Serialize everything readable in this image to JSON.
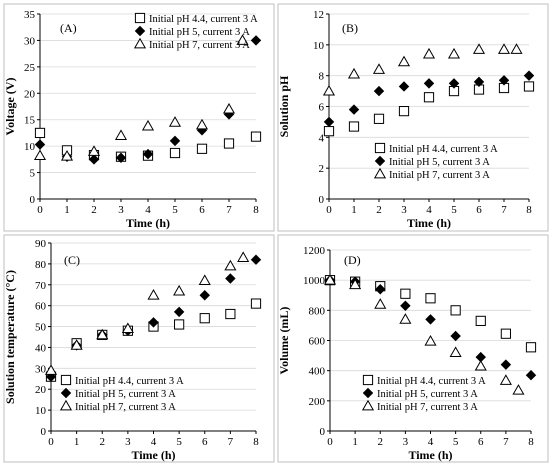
{
  "chart_data": [
    {
      "type": "scatter",
      "panel_label": "(A)",
      "xlabel": "Time (h)",
      "ylabel": "Voltage (V)",
      "xlim": [
        0,
        8
      ],
      "ylim": [
        0,
        35
      ],
      "xticks": [
        0,
        1,
        2,
        3,
        4,
        5,
        6,
        7,
        8
      ],
      "yticks": [
        0,
        5,
        10,
        15,
        20,
        25,
        30,
        35
      ],
      "grid": "horizontal",
      "legend_position": "top-right",
      "series": [
        {
          "name": "Initial pH 4.4, current 3 A",
          "marker": "square",
          "x": [
            0,
            1,
            2,
            3,
            4,
            5,
            6,
            7,
            8
          ],
          "y": [
            12.5,
            9.2,
            8.3,
            8.0,
            8.2,
            8.7,
            9.5,
            10.5,
            11.8
          ]
        },
        {
          "name": "Initial pH 5, current 3 A",
          "marker": "diamond",
          "x": [
            0,
            1,
            2,
            3,
            4,
            5,
            6,
            7,
            8
          ],
          "y": [
            10.3,
            8.0,
            7.5,
            7.8,
            8.5,
            11.0,
            13.0,
            16.0,
            30.0
          ]
        },
        {
          "name": "Initial pH 7, current 3 A",
          "marker": "triangle",
          "x": [
            0,
            1,
            2,
            3,
            4,
            5,
            6,
            7,
            7.5
          ],
          "y": [
            8.2,
            8.1,
            9.0,
            12.0,
            13.8,
            14.5,
            14.0,
            17.0,
            30.0
          ]
        }
      ]
    },
    {
      "type": "scatter",
      "panel_label": "(B)",
      "xlabel": "Time (h)",
      "ylabel": "Solution pH",
      "xlim": [
        0,
        8
      ],
      "ylim": [
        0,
        12
      ],
      "xticks": [
        0,
        1,
        2,
        3,
        4,
        5,
        6,
        7,
        8
      ],
      "yticks": [
        0,
        2,
        4,
        6,
        8,
        10,
        12
      ],
      "grid": "horizontal",
      "legend_position": "bottom-right",
      "series": [
        {
          "name": "Initial pH 4.4, current 3 A",
          "marker": "square",
          "x": [
            0,
            1,
            2,
            3,
            4,
            5,
            6,
            7,
            8
          ],
          "y": [
            4.4,
            4.7,
            5.2,
            5.7,
            6.6,
            7.0,
            7.1,
            7.2,
            7.3
          ]
        },
        {
          "name": "Initial pH 5, current 3 A",
          "marker": "diamond",
          "x": [
            0,
            1,
            2,
            3,
            4,
            5,
            6,
            7,
            8
          ],
          "y": [
            5.0,
            5.8,
            7.0,
            7.3,
            7.5,
            7.5,
            7.6,
            7.7,
            8.0
          ]
        },
        {
          "name": "Initial pH 7, current 3 A",
          "marker": "triangle",
          "x": [
            0,
            1,
            2,
            3,
            4,
            5,
            6,
            7,
            7.5
          ],
          "y": [
            7.0,
            8.1,
            8.4,
            8.9,
            9.4,
            9.4,
            9.7,
            9.7,
            9.7
          ]
        }
      ]
    },
    {
      "type": "scatter",
      "panel_label": "(C)",
      "xlabel": "Time (h)",
      "ylabel": "Solution temperature (°C)",
      "xlim": [
        0,
        8
      ],
      "ylim": [
        0,
        90
      ],
      "xticks": [
        0,
        1,
        2,
        3,
        4,
        5,
        6,
        7,
        8
      ],
      "yticks": [
        0,
        10,
        20,
        30,
        40,
        50,
        60,
        70,
        80,
        90
      ],
      "grid": "horizontal",
      "legend_position": "bottom-right",
      "series": [
        {
          "name": "Initial pH 4.4, current 3 A",
          "marker": "square",
          "x": [
            0,
            1,
            2,
            3,
            4,
            5,
            6,
            7,
            8
          ],
          "y": [
            26,
            42,
            46,
            48,
            50,
            51,
            54,
            56,
            61
          ]
        },
        {
          "name": "Initial pH 5, current 3 A",
          "marker": "diamond",
          "x": [
            0,
            1,
            2,
            3,
            4,
            5,
            6,
            7,
            8
          ],
          "y": [
            26,
            41,
            46,
            48,
            52,
            57,
            65,
            73,
            82
          ]
        },
        {
          "name": "Initial pH 7, current 3 A",
          "marker": "triangle",
          "x": [
            0,
            1,
            2,
            3,
            4,
            5,
            6,
            7,
            7.5
          ],
          "y": [
            29,
            41,
            46,
            49,
            65,
            67,
            72,
            79,
            83
          ]
        }
      ]
    },
    {
      "type": "scatter",
      "panel_label": "(D)",
      "xlabel": "Time (h)",
      "ylabel": "Volume (mL)",
      "xlim": [
        0,
        8
      ],
      "ylim": [
        0,
        1200
      ],
      "xticks": [
        0,
        1,
        2,
        3,
        4,
        5,
        6,
        7,
        8
      ],
      "yticks": [
        0,
        200,
        400,
        600,
        800,
        1000,
        1200
      ],
      "grid": "horizontal",
      "legend_position": "bottom-left",
      "series": [
        {
          "name": "Initial pH 4.4, current 3 A",
          "marker": "square",
          "x": [
            0,
            1,
            2,
            3,
            4,
            5,
            6,
            7,
            8
          ],
          "y": [
            1000,
            990,
            960,
            910,
            880,
            800,
            730,
            645,
            555
          ]
        },
        {
          "name": "Initial pH 5, current 3 A",
          "marker": "diamond",
          "x": [
            0,
            1,
            2,
            3,
            4,
            5,
            6,
            7,
            8
          ],
          "y": [
            1000,
            990,
            940,
            830,
            740,
            630,
            490,
            440,
            370
          ]
        },
        {
          "name": "Initial pH 7, current 3 A",
          "marker": "triangle",
          "x": [
            0,
            1,
            2,
            3,
            4,
            5,
            6,
            7,
            7.5
          ],
          "y": [
            1000,
            970,
            840,
            740,
            595,
            520,
            430,
            335,
            270
          ]
        }
      ]
    }
  ]
}
